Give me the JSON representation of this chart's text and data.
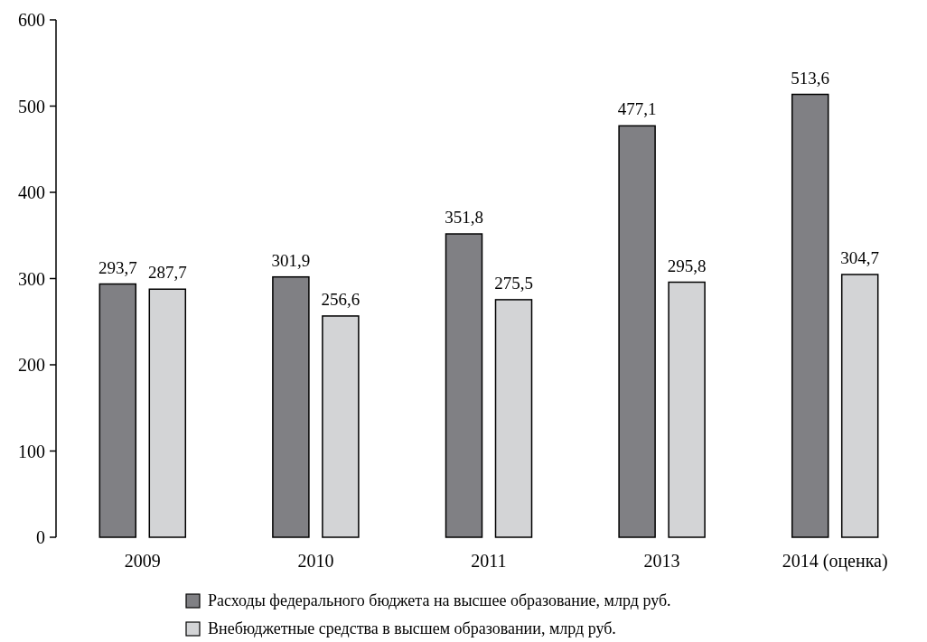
{
  "chart_data": {
    "type": "bar",
    "categories": [
      "2009",
      "2010",
      "2011",
      "2013",
      "2014 (оценка)"
    ],
    "series": [
      {
        "name": "Расходы федерального бюджета на высшее образование, млрд руб.",
        "color": "#808084",
        "values": [
          293.7,
          301.9,
          351.8,
          477.1,
          513.6
        ],
        "value_labels": [
          "293,7",
          "301,9",
          "351,8",
          "477,1",
          "513,6"
        ]
      },
      {
        "name": "Внебюджетные средства в высшем образовании, млрд руб.",
        "color": "#d3d4d6",
        "values": [
          287.7,
          256.6,
          275.5,
          295.8,
          304.7
        ],
        "value_labels": [
          "287,7",
          "256,6",
          "275,5",
          "295,8",
          "304,7"
        ]
      }
    ],
    "ylim": [
      0,
      600
    ],
    "yticks": [
      0,
      100,
      200,
      300,
      400,
      500,
      600
    ],
    "grid": false,
    "legend": "bottom"
  }
}
